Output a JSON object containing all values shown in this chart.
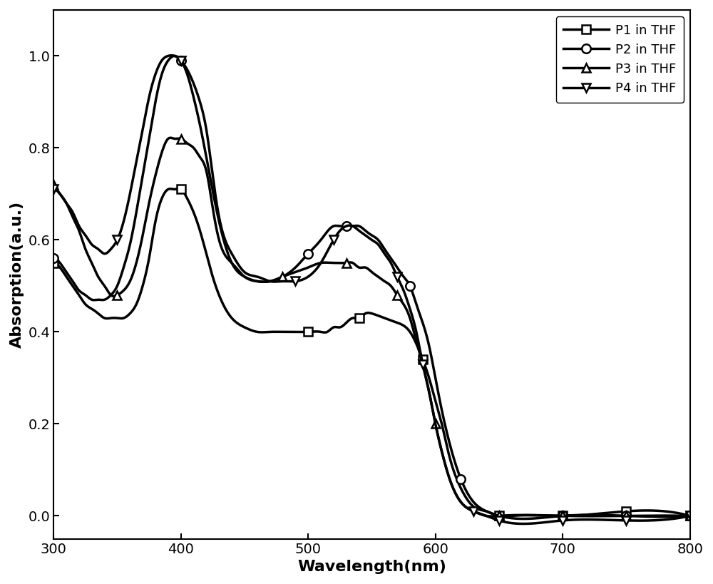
{
  "title": "",
  "xlabel": "Wavelength(nm)",
  "ylabel": "Absorption(a.u.)",
  "xlim": [
    300,
    800
  ],
  "ylim": [
    -0.05,
    1.1
  ],
  "xticks": [
    300,
    400,
    500,
    600,
    700,
    800
  ],
  "yticks": [
    0.0,
    0.2,
    0.4,
    0.6,
    0.8,
    1.0
  ],
  "line_color": "#000000",
  "line_width": 2.5,
  "marker_size": 9,
  "legend_labels": [
    "P1 in THF",
    "P2 in THF",
    "P3 in THF",
    "P4 in THF"
  ],
  "legend_markers": [
    "s",
    "o",
    "^",
    "v"
  ],
  "P1": {
    "x": [
      300,
      305,
      310,
      315,
      320,
      325,
      330,
      335,
      340,
      345,
      350,
      355,
      360,
      365,
      370,
      375,
      380,
      385,
      390,
      395,
      400,
      405,
      410,
      415,
      420,
      425,
      430,
      440,
      450,
      460,
      470,
      480,
      490,
      500,
      510,
      515,
      520,
      525,
      530,
      535,
      540,
      545,
      550,
      560,
      570,
      580,
      590,
      595,
      600,
      605,
      610,
      620,
      630,
      640,
      650,
      660,
      700,
      750,
      800
    ],
    "y": [
      0.55,
      0.54,
      0.52,
      0.5,
      0.48,
      0.46,
      0.45,
      0.44,
      0.43,
      0.43,
      0.43,
      0.43,
      0.44,
      0.46,
      0.5,
      0.56,
      0.64,
      0.69,
      0.71,
      0.71,
      0.71,
      0.69,
      0.66,
      0.62,
      0.57,
      0.52,
      0.48,
      0.43,
      0.41,
      0.4,
      0.4,
      0.4,
      0.4,
      0.4,
      0.4,
      0.4,
      0.41,
      0.41,
      0.42,
      0.43,
      0.43,
      0.44,
      0.44,
      0.43,
      0.42,
      0.4,
      0.34,
      0.3,
      0.25,
      0.2,
      0.14,
      0.06,
      0.02,
      0.01,
      0.0,
      0.0,
      0.0,
      0.01,
      0.0
    ]
  },
  "P2": {
    "x": [
      300,
      305,
      310,
      315,
      320,
      325,
      330,
      335,
      340,
      345,
      350,
      355,
      360,
      365,
      370,
      375,
      380,
      385,
      390,
      395,
      400,
      405,
      410,
      415,
      420,
      430,
      440,
      450,
      460,
      470,
      480,
      490,
      500,
      510,
      520,
      525,
      530,
      535,
      540,
      545,
      550,
      555,
      560,
      565,
      570,
      575,
      580,
      585,
      590,
      595,
      600,
      605,
      610,
      620,
      630,
      640,
      650,
      700,
      750,
      800
    ],
    "y": [
      0.56,
      0.55,
      0.53,
      0.51,
      0.49,
      0.48,
      0.47,
      0.47,
      0.47,
      0.48,
      0.5,
      0.54,
      0.59,
      0.66,
      0.74,
      0.82,
      0.9,
      0.96,
      0.99,
      1.0,
      0.99,
      0.96,
      0.91,
      0.85,
      0.78,
      0.64,
      0.55,
      0.52,
      0.51,
      0.51,
      0.52,
      0.54,
      0.57,
      0.6,
      0.63,
      0.63,
      0.63,
      0.63,
      0.63,
      0.62,
      0.61,
      0.6,
      0.58,
      0.56,
      0.54,
      0.52,
      0.5,
      0.46,
      0.42,
      0.37,
      0.3,
      0.23,
      0.17,
      0.08,
      0.03,
      0.01,
      0.0,
      0.0,
      0.0,
      0.0
    ]
  },
  "P3": {
    "x": [
      300,
      305,
      310,
      315,
      320,
      325,
      330,
      335,
      340,
      345,
      350,
      355,
      360,
      365,
      370,
      375,
      380,
      385,
      390,
      395,
      400,
      405,
      410,
      415,
      420,
      425,
      430,
      440,
      450,
      460,
      470,
      480,
      490,
      500,
      510,
      520,
      525,
      530,
      535,
      540,
      545,
      550,
      555,
      560,
      565,
      570,
      575,
      580,
      585,
      590,
      595,
      600,
      605,
      610,
      620,
      630,
      640,
      650,
      700,
      750,
      800
    ],
    "y": [
      0.72,
      0.7,
      0.68,
      0.65,
      0.62,
      0.58,
      0.55,
      0.52,
      0.5,
      0.48,
      0.48,
      0.49,
      0.51,
      0.55,
      0.61,
      0.68,
      0.74,
      0.79,
      0.82,
      0.82,
      0.82,
      0.81,
      0.8,
      0.78,
      0.75,
      0.67,
      0.6,
      0.55,
      0.52,
      0.51,
      0.51,
      0.52,
      0.53,
      0.54,
      0.55,
      0.55,
      0.55,
      0.55,
      0.55,
      0.54,
      0.54,
      0.53,
      0.52,
      0.51,
      0.5,
      0.48,
      0.46,
      0.43,
      0.38,
      0.33,
      0.27,
      0.2,
      0.14,
      0.09,
      0.03,
      0.01,
      0.0,
      0.0,
      0.0,
      0.0,
      0.0
    ]
  },
  "P4": {
    "x": [
      300,
      305,
      310,
      315,
      320,
      325,
      330,
      335,
      340,
      345,
      350,
      355,
      360,
      365,
      370,
      375,
      380,
      385,
      390,
      395,
      400,
      405,
      410,
      415,
      420,
      425,
      430,
      440,
      450,
      460,
      470,
      480,
      490,
      500,
      510,
      520,
      525,
      530,
      535,
      540,
      545,
      550,
      555,
      560,
      565,
      570,
      575,
      580,
      585,
      590,
      595,
      600,
      605,
      610,
      620,
      630,
      640,
      650,
      700,
      750,
      800
    ],
    "y": [
      0.71,
      0.7,
      0.68,
      0.66,
      0.63,
      0.61,
      0.59,
      0.58,
      0.57,
      0.58,
      0.6,
      0.64,
      0.7,
      0.77,
      0.84,
      0.91,
      0.96,
      0.99,
      1.0,
      1.0,
      0.99,
      0.97,
      0.94,
      0.9,
      0.84,
      0.74,
      0.65,
      0.57,
      0.53,
      0.52,
      0.51,
      0.51,
      0.51,
      0.52,
      0.55,
      0.6,
      0.62,
      0.63,
      0.63,
      0.62,
      0.61,
      0.6,
      0.59,
      0.57,
      0.55,
      0.52,
      0.49,
      0.45,
      0.4,
      0.33,
      0.27,
      0.2,
      0.14,
      0.09,
      0.03,
      0.01,
      0.0,
      -0.01,
      -0.01,
      -0.01,
      0.0
    ]
  },
  "marker_x": {
    "P1": [
      300,
      400,
      500,
      540,
      590,
      650,
      700,
      750,
      800
    ],
    "P2": [
      300,
      400,
      500,
      530,
      580,
      620,
      700,
      750,
      800
    ],
    "P3": [
      300,
      350,
      400,
      480,
      530,
      570,
      600,
      650,
      700,
      750,
      800
    ],
    "P4": [
      300,
      350,
      400,
      490,
      520,
      570,
      590,
      630,
      650,
      700,
      750,
      800
    ]
  }
}
